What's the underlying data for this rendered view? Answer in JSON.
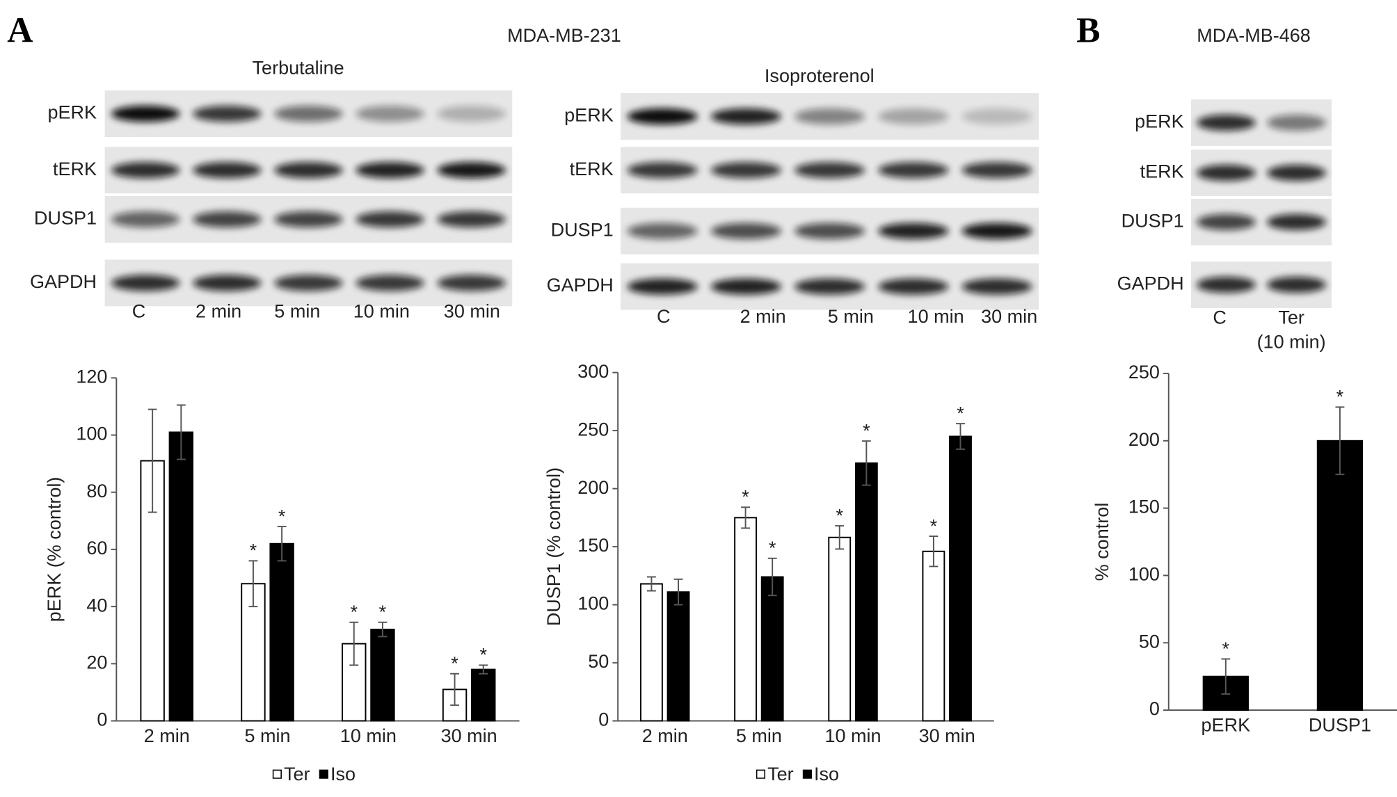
{
  "panels": [
    {
      "label": "A",
      "title": "MDA-MB-231"
    },
    {
      "label": "B",
      "title": "MDA-MB-468"
    }
  ],
  "blots": [
    {
      "title": "Terbutaline",
      "rows": [
        "pERK",
        "tERK",
        "DUSP1",
        "GAPDH"
      ],
      "lanes": [
        "C",
        "2 min",
        "5 min",
        "10 min",
        "30 min"
      ]
    },
    {
      "title": "Isoproterenol",
      "rows": [
        "pERK",
        "tERK",
        "DUSP1",
        "GAPDH"
      ],
      "lanes": [
        "C",
        "2 min",
        "5 min",
        "10 min",
        "30 min"
      ]
    },
    {
      "rows": [
        "pERK",
        "tERK",
        "DUSP1",
        "GAPDH"
      ],
      "lanes": [
        "C",
        "Ter"
      ],
      "lane_note": "(10 min)"
    }
  ],
  "chart_data": [
    {
      "type": "bar",
      "y_label": "pERK (% control)",
      "categories": [
        "2 min",
        "5 min",
        "10 min",
        "30 min"
      ],
      "series": [
        {
          "name": "Ter",
          "color": "#ffffff",
          "values": [
            91,
            48,
            27,
            11
          ],
          "errors": [
            18,
            8,
            7.5,
            5.5
          ],
          "significance": [
            null,
            "*",
            "*",
            "*"
          ]
        },
        {
          "name": "Iso",
          "color": "#000000",
          "values": [
            101,
            62,
            32,
            18
          ],
          "errors": [
            9.5,
            6,
            2.5,
            1.5
          ],
          "significance": [
            null,
            "*",
            "*",
            "*"
          ]
        }
      ],
      "ylim": [
        0,
        120
      ],
      "yticks": [
        0,
        20,
        40,
        60,
        80,
        100,
        120
      ]
    },
    {
      "type": "bar",
      "y_label": "DUSP1 (% control)",
      "categories": [
        "2 min",
        "5 min",
        "10 min",
        "30 min"
      ],
      "series": [
        {
          "name": "Ter",
          "color": "#ffffff",
          "values": [
            118,
            175,
            158,
            146
          ],
          "errors": [
            6,
            9,
            10,
            13
          ],
          "significance": [
            null,
            "*",
            "*",
            "*"
          ]
        },
        {
          "name": "Iso",
          "color": "#000000",
          "values": [
            111,
            124,
            222,
            245
          ],
          "errors": [
            11,
            16,
            19,
            11
          ],
          "significance": [
            null,
            "*",
            "*",
            "*"
          ]
        }
      ],
      "ylim": [
        0,
        300
      ],
      "yticks": [
        0,
        50,
        100,
        150,
        200,
        250,
        300
      ]
    },
    {
      "type": "bar",
      "y_label": "% control",
      "categories": [
        "pERK",
        "DUSP1"
      ],
      "series": [
        {
          "color": "#000000",
          "values": [
            25,
            200
          ],
          "errors": [
            13,
            25
          ],
          "significance": [
            "*",
            "*"
          ]
        }
      ],
      "ylim": [
        0,
        250
      ],
      "yticks": [
        0,
        50,
        100,
        150,
        200,
        250
      ]
    }
  ]
}
